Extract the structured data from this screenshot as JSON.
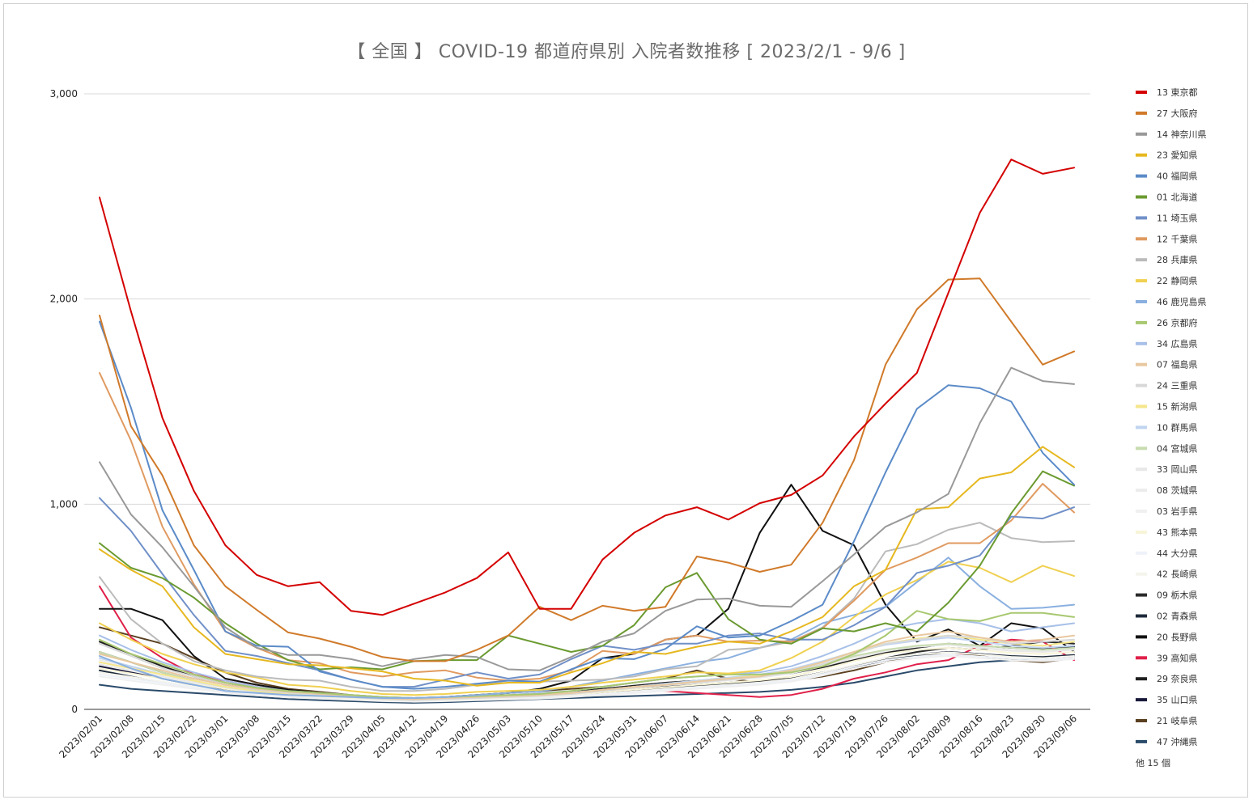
{
  "chart_data": {
    "type": "line",
    "title": "【 全国 】 COVID-19 都道府県別 入院者数推移 [ 2023/2/1 - 9/6 ]",
    "xlabel": "",
    "ylabel": "",
    "ylim": [
      0,
      3000
    ],
    "y_ticks": [
      "0",
      "1,000",
      "2,000",
      "3,000"
    ],
    "y_tick_values": [
      0,
      1000,
      2000,
      3000
    ],
    "grid": true,
    "legend_position": "right",
    "legend_more": "他 15 個",
    "x": [
      "2023/02/01",
      "2023/02/08",
      "2023/02/15",
      "2023/02/22",
      "2023/03/01",
      "2023/03/08",
      "2023/03/15",
      "2023/03/22",
      "2023/03/29",
      "2023/04/05",
      "2023/04/12",
      "2023/04/19",
      "2023/04/26",
      "2023/05/03",
      "2023/05/10",
      "2023/05/17",
      "2023/05/24",
      "2023/05/31",
      "2023/06/07",
      "2023/06/14",
      "2023/06/21",
      "2023/06/28",
      "2023/07/05",
      "2023/07/12",
      "2023/07/19",
      "2023/07/26",
      "2023/08/02",
      "2023/08/09",
      "2023/08/16",
      "2023/08/23",
      "2023/08/30",
      "2023/09/06"
    ],
    "series": [
      {
        "name": "13 東京都",
        "color": "#d40000",
        "values": [
          2495,
          1940,
          1420,
          1065,
          800,
          655,
          600,
          620,
          480,
          460,
          515,
          570,
          640,
          765,
          490,
          490,
          730,
          860,
          945,
          985,
          925,
          1005,
          1045,
          1140,
          1330,
          1490,
          1640,
          2030,
          2420,
          2680,
          2610,
          2640
        ]
      },
      {
        "name": "27 大阪府",
        "color": "#d07a2a",
        "values": [
          1920,
          1380,
          1140,
          800,
          600,
          485,
          375,
          345,
          305,
          255,
          235,
          235,
          290,
          360,
          500,
          435,
          505,
          480,
          500,
          745,
          715,
          670,
          705,
          910,
          1215,
          1680,
          1950,
          2095,
          2100,
          1890,
          1680,
          1745
        ]
      },
      {
        "name": "14 神奈川県",
        "color": "#999999",
        "values": [
          1205,
          950,
          790,
          600,
          400,
          300,
          265,
          265,
          245,
          210,
          245,
          265,
          255,
          195,
          190,
          255,
          330,
          370,
          480,
          535,
          540,
          505,
          500,
          625,
          755,
          890,
          960,
          1050,
          1395,
          1665,
          1600,
          1585
        ]
      },
      {
        "name": "23 愛知県",
        "color": "#e6b820",
        "values": [
          780,
          680,
          600,
          400,
          270,
          245,
          220,
          215,
          200,
          185,
          150,
          140,
          115,
          130,
          130,
          180,
          225,
          280,
          270,
          305,
          330,
          320,
          380,
          450,
          600,
          680,
          975,
          985,
          1125,
          1155,
          1280,
          1180
        ]
      },
      {
        "name": "40 福岡県",
        "color": "#5b8bc8",
        "values": [
          1890,
          1470,
          970,
          680,
          380,
          310,
          305,
          185,
          145,
          110,
          100,
          110,
          125,
          140,
          135,
          195,
          250,
          245,
          295,
          405,
          350,
          360,
          430,
          510,
          820,
          1155,
          1465,
          1580,
          1565,
          1500,
          1250,
          1095
        ]
      },
      {
        "name": "01 北海道",
        "color": "#6a9a30",
        "values": [
          810,
          690,
          640,
          545,
          420,
          320,
          240,
          195,
          205,
          195,
          235,
          240,
          240,
          360,
          320,
          280,
          310,
          410,
          595,
          665,
          440,
          340,
          320,
          395,
          380,
          420,
          380,
          520,
          700,
          955,
          1160,
          1090
        ]
      },
      {
        "name": "11 埼玉県",
        "color": "#7090c8",
        "values": [
          1030,
          870,
          660,
          460,
          285,
          260,
          225,
          190,
          145,
          110,
          110,
          145,
          180,
          150,
          170,
          245,
          310,
          290,
          320,
          320,
          360,
          370,
          340,
          340,
          410,
          500,
          665,
          700,
          750,
          940,
          930,
          985
        ]
      },
      {
        "name": "12 千葉県",
        "color": "#e09a60",
        "values": [
          1640,
          1310,
          890,
          610,
          380,
          300,
          240,
          225,
          180,
          160,
          180,
          190,
          155,
          140,
          150,
          190,
          285,
          270,
          340,
          360,
          330,
          335,
          330,
          395,
          530,
          680,
          740,
          810,
          810,
          920,
          1100,
          960
        ]
      },
      {
        "name": "28 兵庫県",
        "color": "#bbbbbb",
        "values": [
          645,
          440,
          320,
          235,
          190,
          160,
          145,
          140,
          110,
          90,
          90,
          100,
          120,
          130,
          135,
          140,
          145,
          160,
          195,
          210,
          290,
          300,
          330,
          400,
          540,
          770,
          805,
          875,
          910,
          835,
          815,
          820
        ]
      },
      {
        "name": "22 静岡県",
        "color": "#f0d050",
        "values": [
          420,
          340,
          270,
          220,
          180,
          155,
          120,
          110,
          90,
          75,
          70,
          75,
          85,
          90,
          95,
          110,
          130,
          145,
          160,
          180,
          175,
          190,
          250,
          330,
          450,
          560,
          630,
          720,
          690,
          620,
          700,
          650
        ]
      },
      {
        "name": "46 鹿児島県",
        "color": "#8ab0e0",
        "values": [
          260,
          200,
          150,
          120,
          90,
          80,
          70,
          65,
          60,
          55,
          55,
          60,
          70,
          80,
          90,
          110,
          140,
          170,
          200,
          230,
          250,
          300,
          340,
          420,
          460,
          500,
          620,
          740,
          600,
          490,
          495,
          510
        ]
      },
      {
        "name": "26 京都府",
        "color": "#a8c870",
        "values": [
          340,
          270,
          220,
          170,
          130,
          105,
          90,
          80,
          70,
          60,
          55,
          60,
          65,
          70,
          75,
          90,
          110,
          130,
          150,
          160,
          170,
          170,
          180,
          210,
          270,
          360,
          480,
          440,
          430,
          470,
          470,
          450
        ]
      },
      {
        "name": "34 広島県",
        "color": "#a8c0e8",
        "values": [
          360,
          290,
          230,
          180,
          140,
          110,
          90,
          80,
          70,
          60,
          55,
          60,
          65,
          70,
          80,
          90,
          110,
          130,
          150,
          160,
          170,
          180,
          210,
          260,
          320,
          390,
          420,
          440,
          420,
          380,
          400,
          420
        ]
      },
      {
        "name": "07 福島県",
        "color": "#e8c8a0",
        "values": [
          270,
          230,
          190,
          150,
          120,
          100,
          85,
          75,
          65,
          55,
          50,
          55,
          60,
          65,
          70,
          80,
          95,
          110,
          120,
          135,
          150,
          160,
          190,
          230,
          280,
          330,
          360,
          380,
          350,
          330,
          340,
          360
        ]
      },
      {
        "name": "24 三重県",
        "color": "#d8d8d8",
        "values": [
          320,
          260,
          200,
          160,
          120,
          95,
          80,
          70,
          60,
          50,
          45,
          50,
          55,
          60,
          65,
          75,
          90,
          105,
          120,
          130,
          145,
          160,
          180,
          220,
          270,
          320,
          340,
          360,
          350,
          320,
          330,
          340
        ]
      },
      {
        "name": "15 新潟県",
        "color": "#f5e68c",
        "values": [
          230,
          200,
          170,
          140,
          110,
          90,
          75,
          70,
          60,
          55,
          50,
          55,
          60,
          65,
          70,
          80,
          90,
          105,
          120,
          135,
          150,
          165,
          190,
          230,
          280,
          320,
          345,
          360,
          340,
          320,
          310,
          330
        ]
      },
      {
        "name": "10 群馬県",
        "color": "#c0d4f0",
        "values": [
          250,
          210,
          170,
          140,
          110,
          90,
          75,
          68,
          60,
          52,
          48,
          52,
          58,
          65,
          72,
          82,
          95,
          110,
          125,
          140,
          155,
          170,
          195,
          235,
          280,
          315,
          335,
          350,
          330,
          310,
          300,
          310
        ]
      },
      {
        "name": "04 宮城県",
        "color": "#c8dcb0",
        "values": [
          280,
          230,
          180,
          140,
          110,
          90,
          75,
          68,
          60,
          52,
          48,
          52,
          58,
          65,
          72,
          82,
          95,
          110,
          125,
          140,
          150,
          165,
          185,
          220,
          260,
          290,
          310,
          320,
          310,
          300,
          290,
          300
        ]
      },
      {
        "name": "33 岡山県",
        "color": "#e8e8e8",
        "values": [
          220,
          190,
          160,
          130,
          105,
          85,
          72,
          65,
          58,
          50,
          46,
          50,
          56,
          62,
          68,
          78,
          90,
          105,
          118,
          130,
          142,
          155,
          175,
          210,
          250,
          285,
          305,
          315,
          300,
          285,
          280,
          290
        ]
      },
      {
        "name": "08 茨城県",
        "color": "#ececec",
        "values": [
          240,
          205,
          170,
          138,
          110,
          90,
          75,
          68,
          60,
          52,
          48,
          52,
          58,
          64,
          70,
          80,
          92,
          106,
          120,
          132,
          144,
          158,
          178,
          215,
          255,
          290,
          310,
          320,
          305,
          290,
          285,
          295
        ]
      },
      {
        "name": "03 岩手県",
        "color": "#f0f0f0",
        "values": [
          160,
          140,
          120,
          100,
          82,
          68,
          58,
          52,
          46,
          40,
          37,
          40,
          44,
          48,
          52,
          60,
          70,
          80,
          90,
          100,
          110,
          120,
          135,
          165,
          200,
          230,
          250,
          260,
          250,
          240,
          235,
          245
        ]
      },
      {
        "name": "43 熊本県",
        "color": "#f8f4d8",
        "values": [
          200,
          175,
          150,
          125,
          100,
          82,
          70,
          62,
          55,
          48,
          44,
          48,
          52,
          58,
          64,
          72,
          84,
          96,
          108,
          120,
          130,
          142,
          160,
          195,
          235,
          270,
          290,
          300,
          290,
          275,
          270,
          280
        ]
      },
      {
        "name": "44 大分県",
        "color": "#eef2f8",
        "values": [
          170,
          150,
          128,
          106,
          88,
          72,
          62,
          55,
          48,
          42,
          39,
          42,
          46,
          51,
          56,
          64,
          74,
          85,
          96,
          106,
          116,
          126,
          142,
          172,
          208,
          240,
          258,
          268,
          258,
          248,
          242,
          252
        ]
      },
      {
        "name": "42 長崎県",
        "color": "#f4f4ec",
        "values": [
          180,
          158,
          135,
          112,
          92,
          76,
          65,
          58,
          51,
          44,
          41,
          44,
          48,
          53,
          58,
          66,
          76,
          88,
          99,
          110,
          120,
          131,
          148,
          180,
          217,
          250,
          268,
          278,
          268,
          256,
          250,
          260
        ]
      },
      {
        "name": "09 栃木県",
        "color": "#2a2a2a",
        "values": [
          280,
          230,
          180,
          140,
          100,
          80,
          70,
          60,
          50,
          45,
          40,
          45,
          50,
          55,
          60,
          70,
          80,
          95,
          110,
          120,
          130,
          140,
          150,
          180,
          210,
          250,
          280,
          300,
          290,
          310,
          330,
          320
        ]
      },
      {
        "name": "02 青森県",
        "color": "#1e2a3a",
        "values": [
          190,
          160,
          130,
          105,
          85,
          70,
          60,
          55,
          48,
          42,
          40,
          44,
          50,
          56,
          62,
          70,
          80,
          92,
          105,
          115,
          125,
          135,
          150,
          175,
          205,
          240,
          265,
          280,
          270,
          260,
          255,
          265
        ]
      },
      {
        "name": "20 長野県",
        "color": "#111111",
        "values": [
          490,
          490,
          435,
          260,
          150,
          120,
          95,
          80,
          60,
          55,
          55,
          60,
          70,
          80,
          100,
          140,
          250,
          270,
          340,
          360,
          490,
          860,
          1095,
          870,
          800,
          510,
          330,
          390,
          310,
          420,
          395,
          280
        ]
      },
      {
        "name": "39 高知県",
        "color": "#e0204a",
        "values": [
          600,
          350,
          250,
          170,
          140,
          110,
          90,
          80,
          60,
          50,
          45,
          45,
          50,
          60,
          70,
          80,
          80,
          90,
          90,
          80,
          70,
          60,
          70,
          100,
          150,
          180,
          220,
          240,
          310,
          340,
          330,
          240
        ]
      },
      {
        "name": "29 奈良県",
        "color": "#202020",
        "values": [
          330,
          270,
          210,
          160,
          120,
          100,
          85,
          75,
          62,
          55,
          50,
          55,
          60,
          68,
          75,
          88,
          100,
          115,
          130,
          140,
          150,
          160,
          175,
          205,
          240,
          275,
          300,
          320,
          310,
          300,
          295,
          305
        ]
      },
      {
        "name": "35 山口県",
        "color": "#1a1a3a",
        "values": [
          210,
          180,
          150,
          120,
          95,
          78,
          66,
          58,
          50,
          44,
          40,
          44,
          49,
          55,
          61,
          70,
          80,
          92,
          104,
          115,
          125,
          135,
          150,
          180,
          215,
          248,
          268,
          280,
          270,
          258,
          252,
          262
        ]
      },
      {
        "name": "21 岐阜県",
        "color": "#5a4020",
        "values": [
          400,
          360,
          320,
          250,
          180,
          130,
          100,
          85,
          70,
          60,
          55,
          60,
          70,
          80,
          90,
          100,
          110,
          130,
          150,
          190,
          150,
          130,
          140,
          160,
          190,
          230,
          260,
          280,
          260,
          240,
          230,
          250
        ]
      },
      {
        "name": "47 沖縄県",
        "color": "#2a4a6a",
        "values": [
          120,
          100,
          90,
          80,
          70,
          60,
          50,
          45,
          40,
          35,
          32,
          35,
          40,
          45,
          50,
          55,
          60,
          65,
          70,
          75,
          80,
          85,
          95,
          110,
          130,
          160,
          190,
          210,
          230,
          240,
          250,
          260
        ]
      }
    ]
  }
}
